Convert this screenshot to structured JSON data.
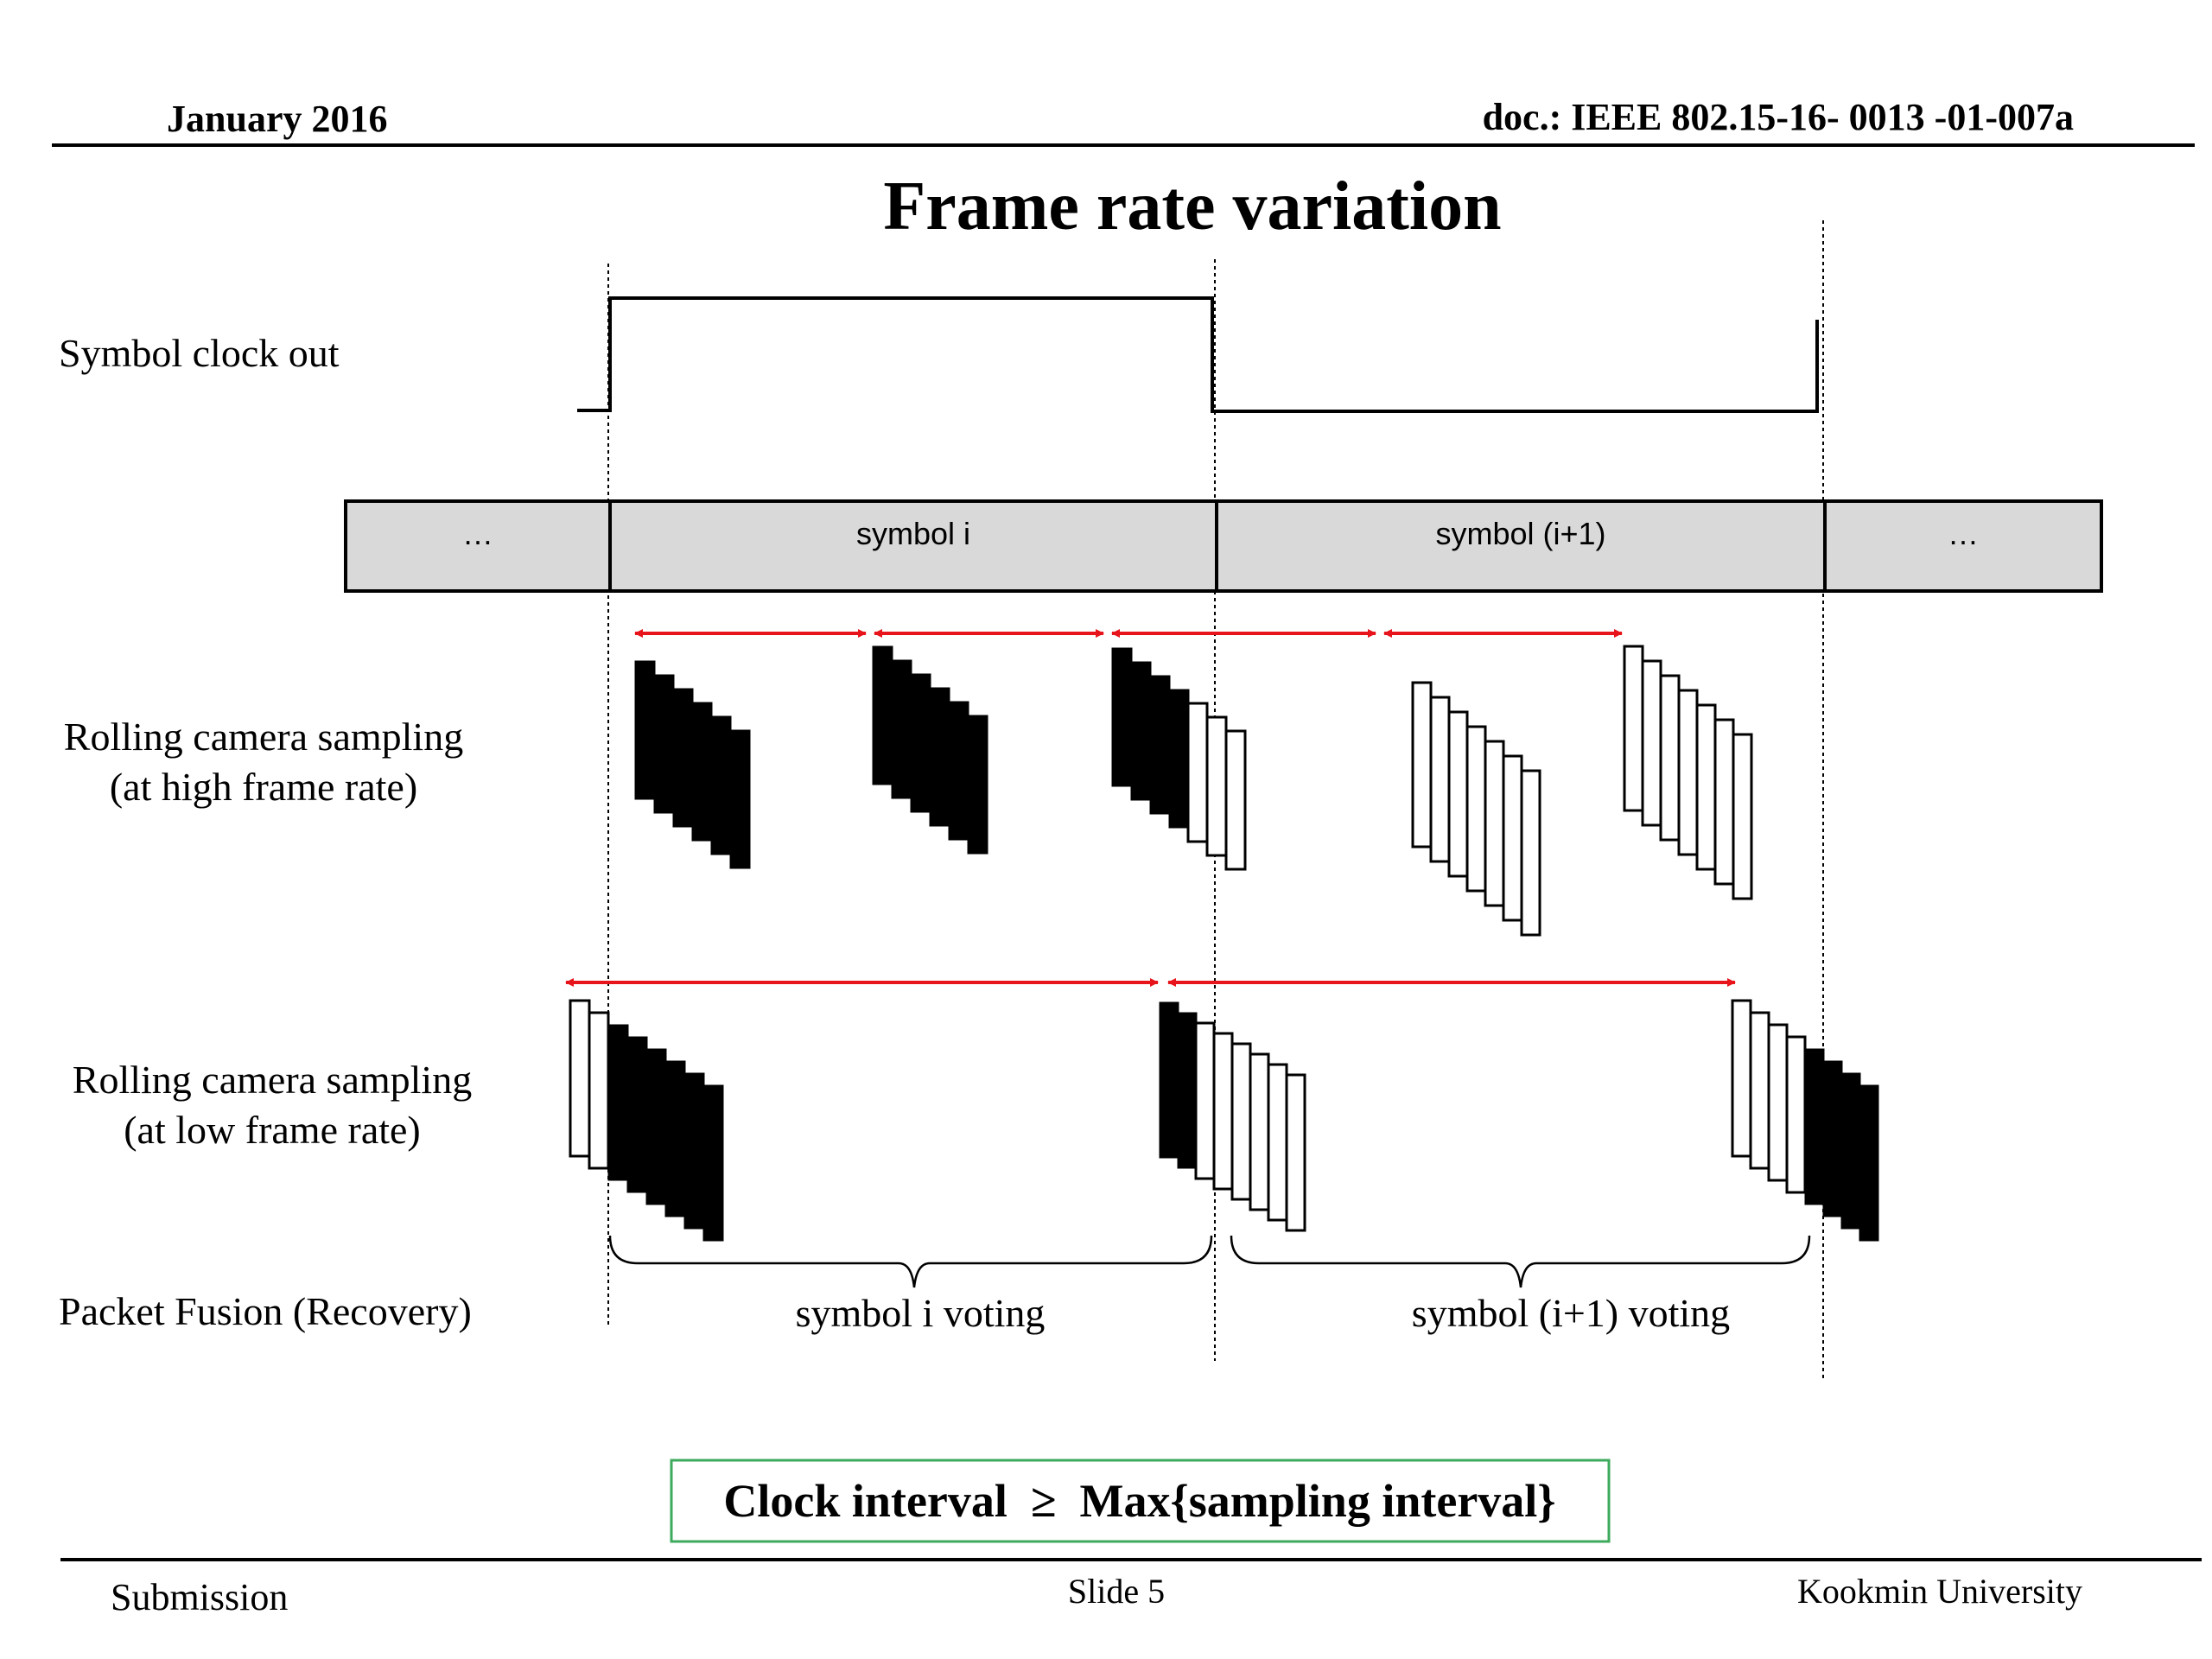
{
  "header": {
    "date": "January 2016",
    "doc_id": "doc.: IEEE 802.15-16- 0013 -01-007a"
  },
  "title": "Frame rate variation",
  "rows": {
    "clock": "Symbol clock out",
    "high_line1": "Rolling camera sampling",
    "high_line2": "(at high frame rate)",
    "low_line1": "Rolling camera sampling",
    "low_line2": "(at low frame rate)",
    "fusion": "Packet Fusion (Recovery)"
  },
  "symbol_bar": {
    "cells": [
      "…",
      "symbol i",
      "symbol (i+1)",
      "…"
    ]
  },
  "voting": {
    "left": "symbol i voting",
    "right": "symbol (i+1) voting"
  },
  "formula": "Clock interval  ≥  Max{sampling interval}",
  "footer": {
    "left": "Submission",
    "center": "Slide 5",
    "right": "Kookmin University"
  },
  "colors": {
    "arrow": "#e8141b",
    "formula_border": "#3daa5c",
    "bar_fill": "#d9d9d9"
  }
}
